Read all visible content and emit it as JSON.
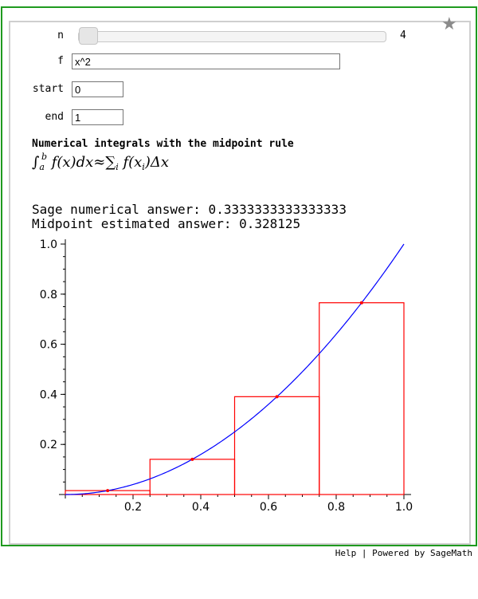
{
  "controls": {
    "n": {
      "label": "n",
      "value": "4",
      "slider_fraction": 0
    },
    "f": {
      "label": "f",
      "value": "x^2"
    },
    "start": {
      "label": "start",
      "value": "0"
    },
    "end": {
      "label": "end",
      "value": "1"
    }
  },
  "heading": "Numerical integrals with the midpoint rule",
  "answers": {
    "sage": "Sage numerical answer: 0.3333333333333333",
    "midpoint": "Midpoint estimated answer: 0.328125"
  },
  "favorite_icon": "star-icon",
  "footer": {
    "help": "Help",
    "separator": " | ",
    "powered": "Powered by SageMath"
  },
  "colors": {
    "frame": "#1f9a1f",
    "curve": "#0000ff",
    "rectangles": "#ff0000",
    "midpoints": "#ff0000"
  },
  "chart_data": {
    "type": "line",
    "function": "x^2",
    "x": [
      0,
      0.05,
      0.1,
      0.15,
      0.2,
      0.25,
      0.3,
      0.35,
      0.4,
      0.45,
      0.5,
      0.55,
      0.6,
      0.65,
      0.7,
      0.75,
      0.8,
      0.85,
      0.9,
      0.95,
      1.0
    ],
    "y": [
      0,
      0.0025,
      0.01,
      0.0225,
      0.04,
      0.0625,
      0.09,
      0.1225,
      0.16,
      0.2025,
      0.25,
      0.3025,
      0.36,
      0.4225,
      0.49,
      0.5625,
      0.64,
      0.7225,
      0.81,
      0.9025,
      1.0
    ],
    "rectangles": [
      {
        "x0": 0,
        "x1": 0.25,
        "height": 0.015625
      },
      {
        "x0": 0.25,
        "x1": 0.5,
        "height": 0.140625
      },
      {
        "x0": 0.5,
        "x1": 0.75,
        "height": 0.390625
      },
      {
        "x0": 0.75,
        "x1": 1.0,
        "height": 0.765625
      }
    ],
    "midpoints": [
      {
        "x": 0.125,
        "y": 0.015625
      },
      {
        "x": 0.375,
        "y": 0.140625
      },
      {
        "x": 0.625,
        "y": 0.390625
      },
      {
        "x": 0.875,
        "y": 0.765625
      }
    ],
    "x_ticks": [
      "0.2",
      "0.4",
      "0.6",
      "0.8",
      "1.0"
    ],
    "y_ticks": [
      "0.2",
      "0.4",
      "0.6",
      "0.8",
      "1.0"
    ],
    "xlim": [
      0,
      1.0
    ],
    "ylim": [
      0,
      1.0
    ],
    "xlabel": "",
    "ylabel": "",
    "title": "",
    "grid": false
  }
}
